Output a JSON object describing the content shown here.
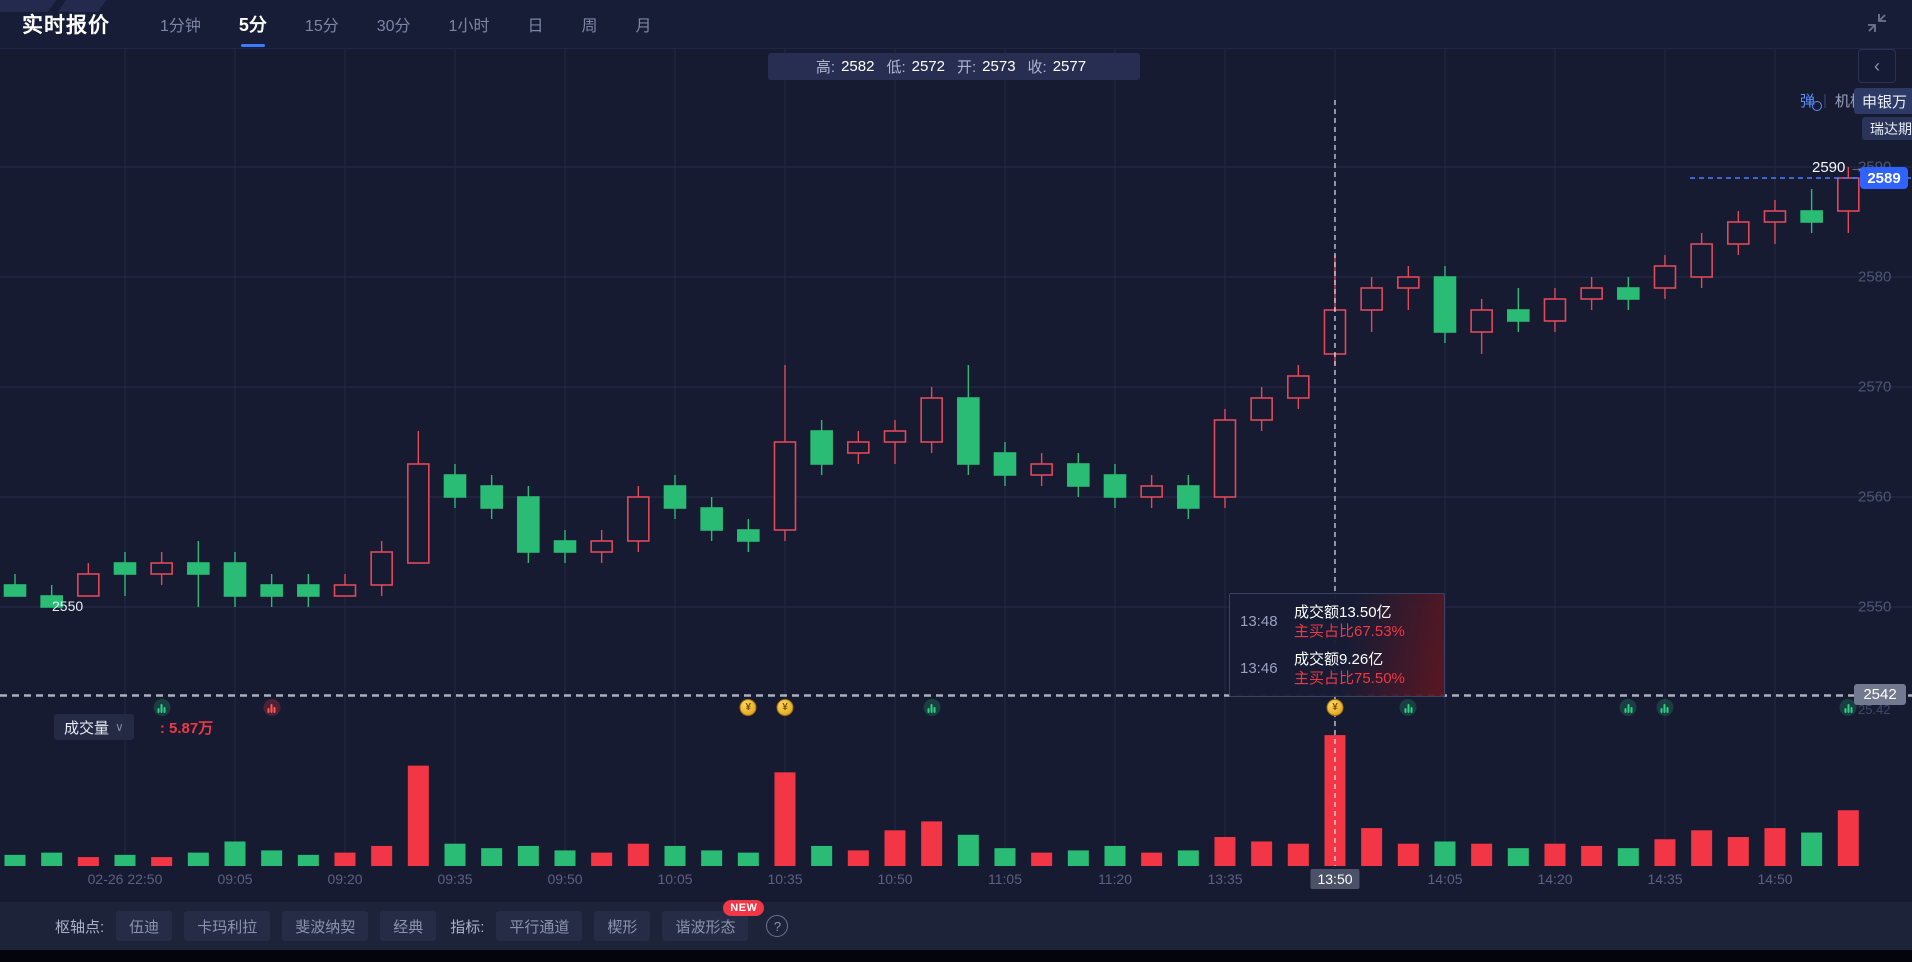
{
  "header": {
    "title": "实时报价",
    "tabs": [
      {
        "label": "1分钟",
        "active": false
      },
      {
        "label": "5分",
        "active": true
      },
      {
        "label": "15分",
        "active": false
      },
      {
        "label": "30分",
        "active": false
      },
      {
        "label": "1小时",
        "active": false
      },
      {
        "label": "日",
        "active": false
      },
      {
        "label": "周",
        "active": false
      },
      {
        "label": "月",
        "active": false
      }
    ]
  },
  "ohlc_bar": {
    "items": [
      {
        "label": "高:",
        "value": "2582"
      },
      {
        "label": "低:",
        "value": "2572"
      },
      {
        "label": "开:",
        "value": "2573"
      },
      {
        "label": "收:",
        "value": "2577"
      }
    ]
  },
  "side_controls": {
    "collapse_chevron": "‹",
    "danmaku_toggle": "弹",
    "separator": "|",
    "org_label": "机构",
    "floating_tags": [
      "申银万",
      "瑞达期"
    ]
  },
  "price_axis": {
    "ticks": [
      "2590",
      "2580",
      "2570",
      "2560",
      "2550"
    ],
    "day_high_marker": "2590",
    "day_high_arrow": "→",
    "last_price": "2589",
    "left_open_marker": "2550",
    "pane_divider_value": "2542",
    "volume_axis_partial": "25.42"
  },
  "tooltip": {
    "rows": [
      {
        "time": "13:48",
        "line1": "成交额13.50亿",
        "line2": "主买占比67.53%"
      },
      {
        "time": "13:46",
        "line1": "成交额9.26亿",
        "line2": "主买占比75.50%"
      }
    ]
  },
  "volume_header": {
    "label": "成交量",
    "chevron": "∨",
    "value": ": 5.87万"
  },
  "time_axis": {
    "labels": [
      "02-26 22:50",
      "09:05",
      "09:20",
      "09:35",
      "09:50",
      "10:05",
      "10:35",
      "10:50",
      "11:05",
      "11:20",
      "13:35",
      "13:50",
      "14:05",
      "14:20",
      "14:35",
      "14:50"
    ],
    "active": "13:50"
  },
  "markers": [
    {
      "candle_index": 4,
      "kind": "green"
    },
    {
      "candle_index": 7,
      "kind": "red"
    },
    {
      "candle_index": 20,
      "kind": "gold"
    },
    {
      "candle_index": 21,
      "kind": "gold"
    },
    {
      "candle_index": 25,
      "kind": "green"
    },
    {
      "candle_index": 36,
      "kind": "gold"
    },
    {
      "candle_index": 38,
      "kind": "green"
    },
    {
      "candle_index": 44,
      "kind": "green"
    },
    {
      "candle_index": 45,
      "kind": "green"
    },
    {
      "candle_index": 50,
      "kind": "green"
    }
  ],
  "toolbar": {
    "pivot_label": "枢轴点:",
    "pivot_buttons": [
      "伍迪",
      "卡玛利拉",
      "斐波纳契",
      "经典"
    ],
    "indicator_label": "指标:",
    "indicator_buttons": [
      "平行通道",
      "楔形",
      "谐波形态"
    ],
    "new_badge": "NEW",
    "help_icon": "?"
  },
  "chart_data": {
    "type": "candlestick",
    "interval": "5分",
    "price_gridlines": [
      2590,
      2580,
      2570,
      2560,
      2550
    ],
    "pane_bottom_price": 2542,
    "last_price": 2589,
    "crosshair_index": 36,
    "crosshair_time": "13:50",
    "crosshair_candle": {
      "open": 2573,
      "high": 2582,
      "low": 2572,
      "close": 2577
    },
    "legend_volume_value_wan": 5.87,
    "colors": {
      "up": "#e1485a",
      "down": "#2abb74",
      "volume_up": "#f23645",
      "volume_down": "#2abb74",
      "last_price_line": "#4d7bff"
    },
    "columns": [
      "time",
      "open",
      "high",
      "low",
      "close",
      "volume_wan"
    ],
    "candles": [
      [
        "22:35",
        2552,
        2553,
        2551,
        2551,
        0.5
      ],
      [
        "22:40",
        2551,
        2552,
        2550,
        2550,
        0.6
      ],
      [
        "22:45",
        2551,
        2554,
        2551,
        2553,
        0.4
      ],
      [
        "22:50",
        2554,
        2555,
        2551,
        2553,
        0.5
      ],
      [
        "22:55",
        2553,
        2555,
        2552,
        2554,
        0.4
      ],
      [
        "23:00",
        2554,
        2556,
        2550,
        2553,
        0.6
      ],
      [
        "09:05",
        2554,
        2555,
        2550,
        2551,
        1.1
      ],
      [
        "09:10",
        2552,
        2553,
        2550,
        2551,
        0.7
      ],
      [
        "09:15",
        2552,
        2553,
        2550,
        2551,
        0.5
      ],
      [
        "09:20",
        2551,
        2553,
        2551,
        2552,
        0.6
      ],
      [
        "09:25",
        2552,
        2556,
        2551,
        2555,
        0.9
      ],
      [
        "09:30",
        2554,
        2566,
        2554,
        2563,
        4.5
      ],
      [
        "09:35",
        2562,
        2563,
        2559,
        2560,
        1.0
      ],
      [
        "09:40",
        2561,
        2562,
        2558,
        2559,
        0.8
      ],
      [
        "09:45",
        2560,
        2561,
        2554,
        2555,
        0.9
      ],
      [
        "09:50",
        2556,
        2557,
        2554,
        2555,
        0.7
      ],
      [
        "09:55",
        2555,
        2557,
        2554,
        2556,
        0.6
      ],
      [
        "10:00",
        2556,
        2561,
        2555,
        2560,
        1.0
      ],
      [
        "10:05",
        2561,
        2562,
        2558,
        2559,
        0.9
      ],
      [
        "10:10",
        2559,
        2560,
        2556,
        2557,
        0.7
      ],
      [
        "10:15",
        2557,
        2558,
        2555,
        2556,
        0.6
      ],
      [
        "10:35",
        2557,
        2572,
        2556,
        2565,
        4.2
      ],
      [
        "10:40",
        2566,
        2567,
        2562,
        2563,
        0.9
      ],
      [
        "10:45",
        2564,
        2566,
        2563,
        2565,
        0.7
      ],
      [
        "10:50",
        2565,
        2567,
        2563,
        2566,
        1.6
      ],
      [
        "10:55",
        2565,
        2570,
        2564,
        2569,
        2.0
      ],
      [
        "11:00",
        2569,
        2572,
        2562,
        2563,
        1.4
      ],
      [
        "11:05",
        2564,
        2565,
        2561,
        2562,
        0.8
      ],
      [
        "11:10",
        2562,
        2564,
        2561,
        2563,
        0.6
      ],
      [
        "11:15",
        2563,
        2564,
        2560,
        2561,
        0.7
      ],
      [
        "11:20",
        2562,
        2563,
        2559,
        2560,
        0.9
      ],
      [
        "11:25",
        2560,
        2562,
        2559,
        2561,
        0.6
      ],
      [
        "11:30",
        2561,
        2562,
        2558,
        2559,
        0.7
      ],
      [
        "13:35",
        2560,
        2568,
        2559,
        2567,
        1.3
      ],
      [
        "13:40",
        2567,
        2570,
        2566,
        2569,
        1.1
      ],
      [
        "13:45",
        2569,
        2572,
        2568,
        2571,
        1.0
      ],
      [
        "13:50",
        2573,
        2582,
        2572,
        2577,
        5.87
      ],
      [
        "13:55",
        2577,
        2580,
        2575,
        2579,
        1.7
      ],
      [
        "14:00",
        2579,
        2581,
        2577,
        2580,
        1.0
      ],
      [
        "14:05",
        2580,
        2581,
        2574,
        2575,
        1.1
      ],
      [
        "14:10",
        2575,
        2578,
        2573,
        2577,
        1.0
      ],
      [
        "14:15",
        2577,
        2579,
        2575,
        2576,
        0.8
      ],
      [
        "14:20",
        2576,
        2579,
        2575,
        2578,
        1.0
      ],
      [
        "14:25",
        2578,
        2580,
        2577,
        2579,
        0.9
      ],
      [
        "14:30",
        2579,
        2580,
        2577,
        2578,
        0.8
      ],
      [
        "14:35",
        2579,
        2582,
        2578,
        2581,
        1.2
      ],
      [
        "14:40",
        2580,
        2584,
        2579,
        2583,
        1.6
      ],
      [
        "14:45",
        2583,
        2586,
        2582,
        2585,
        1.3
      ],
      [
        "14:50",
        2585,
        2587,
        2583,
        2586,
        1.7
      ],
      [
        "14:55",
        2586,
        2588,
        2584,
        2585,
        1.5
      ],
      [
        "15:00",
        2586,
        2590,
        2584,
        2589,
        2.5
      ]
    ]
  }
}
